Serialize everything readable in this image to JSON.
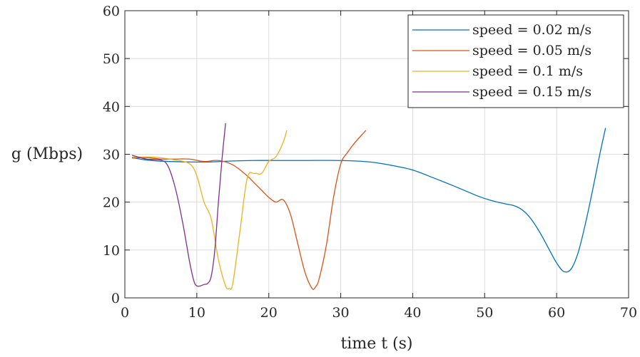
{
  "chart_data": {
    "type": "line",
    "xlabel": "time t (s)",
    "ylabel": "g (Mbps)",
    "xlim": [
      0,
      70
    ],
    "ylim": [
      0,
      60
    ],
    "xticks": [
      0,
      10,
      20,
      30,
      40,
      50,
      60,
      70
    ],
    "yticks": [
      0,
      10,
      20,
      30,
      40,
      50,
      60
    ],
    "grid": true,
    "legend_position": "top-right",
    "series": [
      {
        "name": "speed = 0.02 m/s",
        "color": "#0072BD",
        "x": [
          1,
          3,
          6,
          9,
          12,
          15,
          18,
          21,
          25,
          30,
          34,
          37,
          40,
          43,
          46,
          49,
          51,
          53,
          54,
          55,
          56,
          57,
          58,
          59,
          60,
          61,
          62,
          63,
          64,
          65,
          66,
          66.8
        ],
        "y": [
          29.3,
          28.8,
          28.5,
          28.4,
          28.4,
          28.6,
          28.7,
          28.7,
          28.7,
          28.7,
          28.4,
          27.7,
          26.7,
          25.0,
          23.2,
          21.3,
          20.3,
          19.6,
          19.3,
          18.6,
          17.3,
          15.3,
          12.8,
          10.0,
          7.3,
          5.5,
          6.0,
          9.5,
          15.5,
          22.5,
          30.0,
          35.5
        ]
      },
      {
        "name": "speed = 0.05 m/s",
        "color": "#D95319",
        "x": [
          1,
          3,
          5,
          7,
          9,
          11,
          13,
          15,
          17,
          18,
          19,
          20,
          21,
          22,
          23,
          24,
          25,
          26,
          26.5,
          27,
          28,
          29,
          30,
          31,
          32,
          33.5
        ],
        "y": [
          29.2,
          29.3,
          29.0,
          29.0,
          29.0,
          28.5,
          28.7,
          27.8,
          25.5,
          24.0,
          22.5,
          21.0,
          20.0,
          20.5,
          17.5,
          11.5,
          5.5,
          2.0,
          2.3,
          4.0,
          11.0,
          21.0,
          28.0,
          30.5,
          32.5,
          35.0
        ]
      },
      {
        "name": "speed = 0.1 m/s",
        "color": "#EDB120",
        "x": [
          1,
          4,
          7,
          9,
          10,
          11,
          12,
          13,
          14,
          14.5,
          15,
          16,
          17,
          18,
          19,
          20,
          21,
          22,
          22.5
        ],
        "y": [
          29.4,
          29.4,
          28.8,
          28.0,
          25.5,
          20.0,
          16.5,
          8.0,
          2.5,
          2.0,
          3.0,
          14.0,
          25.0,
          26.0,
          26.0,
          28.5,
          29.5,
          32.5,
          35.0
        ]
      },
      {
        "name": "speed = 0.15 m/s",
        "color": "#7E2F8E",
        "x": [
          1,
          3,
          5,
          6,
          7,
          8,
          9,
          9.6,
          10,
          10.5,
          11,
          11.5,
          12,
          12.5,
          13,
          13.5,
          14
        ],
        "y": [
          29.8,
          29.0,
          28.8,
          27.5,
          23.0,
          16.0,
          7.5,
          3.5,
          2.5,
          2.5,
          2.8,
          3.0,
          4.5,
          10.0,
          20.0,
          29.0,
          36.5
        ]
      }
    ]
  }
}
